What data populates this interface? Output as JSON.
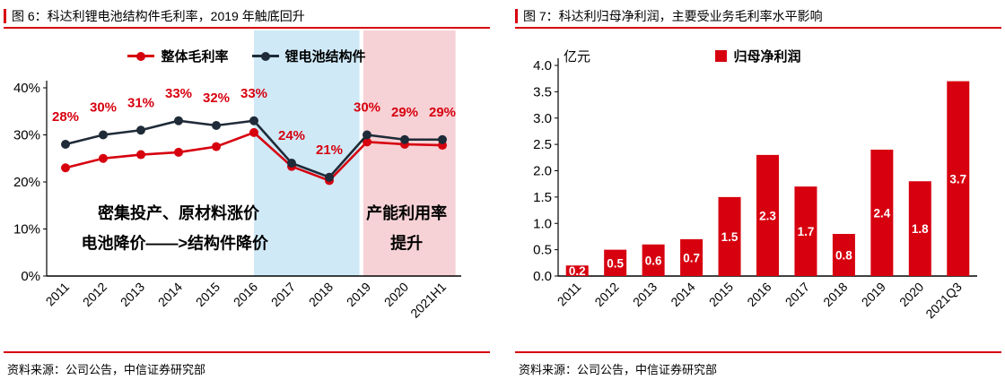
{
  "panels": {
    "left": {
      "title": "图 6：科达利锂电池结构件毛利率，2019 年触底回升",
      "source": "资料来源：公司公告，中信证券研究部"
    },
    "right": {
      "title": "图 7：科达利归母净利润，主要受业务毛利率水平影响",
      "source": "资料来源：公司公告，中信证券研究部"
    }
  },
  "colors": {
    "accent": "#d7000f",
    "dark_line": "#1f2b38",
    "band_blue": "#cfe9f7",
    "band_pink": "#f6d2d6",
    "bar_red": "#d7000f"
  },
  "chart_data": [
    {
      "type": "line",
      "title": "科达利锂电池结构件毛利率",
      "categories": [
        "2011",
        "2012",
        "2013",
        "2014",
        "2015",
        "2016",
        "2017",
        "2018",
        "2019",
        "2020",
        "2021H1"
      ],
      "series": [
        {
          "name": "整体毛利率",
          "color": "#d7000f",
          "values": [
            23,
            25,
            25.8,
            26.3,
            27.5,
            30.5,
            23.3,
            20.3,
            28.5,
            28,
            27.8
          ]
        },
        {
          "name": "锂电池结构件",
          "color": "#1f2b38",
          "values": [
            28,
            30,
            31,
            33,
            32,
            33,
            24,
            21,
            30,
            29,
            29
          ]
        }
      ],
      "point_labels": {
        "series": "锂电池结构件",
        "color": "#d7000f",
        "values": [
          "28%",
          "30%",
          "31%",
          "33%",
          "32%",
          "33%",
          "24%",
          "21%",
          "30%",
          "29%",
          "29%"
        ]
      },
      "ylim": [
        0,
        40
      ],
      "yticks": [
        {
          "value": 0,
          "label": "0%"
        },
        {
          "value": 10,
          "label": "10%"
        },
        {
          "value": 20,
          "label": "20%"
        },
        {
          "value": 30,
          "label": "30%"
        },
        {
          "value": 40,
          "label": "40%"
        }
      ],
      "regions": [
        {
          "name": "highlight-band-blue",
          "from": 5.0,
          "to": 7.8,
          "color": "#cfe9f7"
        },
        {
          "name": "highlight-band-pink",
          "from": 7.9,
          "to": 10.35,
          "color": "#f6d2d6"
        }
      ],
      "annotations": [
        {
          "text": "密集投产、原材料涨价",
          "x": 3.0,
          "y": 13.3
        },
        {
          "text": "电池降价——>结构件降价",
          "x": 2.9,
          "y": 7.0
        },
        {
          "text": "产能利用率",
          "x": 9.05,
          "y": 13.3
        },
        {
          "text": "提升",
          "x": 9.05,
          "y": 7.0
        }
      ],
      "legend_position": "top",
      "grid": false
    },
    {
      "type": "bar",
      "title": "科达利归母净利润",
      "unit_label": "亿元",
      "legend_label": "归母净利润",
      "categories": [
        "2011",
        "2012",
        "2013",
        "2014",
        "2015",
        "2016",
        "2017",
        "2018",
        "2019",
        "2020",
        "2021Q3"
      ],
      "values": [
        0.2,
        0.5,
        0.6,
        0.7,
        1.5,
        2.3,
        1.7,
        0.8,
        2.4,
        1.8,
        3.7
      ],
      "bar_labels": [
        "0.2",
        "0.5",
        "0.6",
        "0.7",
        "1.5",
        "2.3",
        "1.7",
        "0.8",
        "2.4",
        "1.8",
        "3.7"
      ],
      "bar_color": "#d7000f",
      "label_color": "#ffffff",
      "ylim": [
        0,
        4
      ],
      "ytick_step": 0.5,
      "yticks": [
        "0.0",
        "0.5",
        "1.0",
        "1.5",
        "2.0",
        "2.5",
        "3.0",
        "3.5",
        "4.0"
      ],
      "legend_position": "top",
      "grid": false
    }
  ]
}
